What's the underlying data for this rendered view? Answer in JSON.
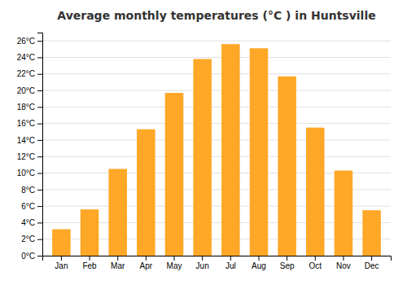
{
  "chart_data": {
    "type": "bar",
    "title": "Average monthly temperatures (°C ) in Huntsville",
    "categories": [
      "Jan",
      "Feb",
      "Mar",
      "Apr",
      "May",
      "Jun",
      "Jul",
      "Aug",
      "Sep",
      "Oct",
      "Nov",
      "Dec"
    ],
    "values": [
      3.2,
      5.6,
      10.5,
      15.3,
      19.7,
      23.8,
      25.6,
      25.1,
      21.7,
      15.5,
      10.3,
      5.5
    ],
    "color": "#FFA726",
    "ylim": [
      0,
      27
    ],
    "yticks": [
      {
        "value": 0,
        "label": "0°C"
      },
      {
        "value": 2,
        "label": "2°C"
      },
      {
        "value": 4,
        "label": "4°C"
      },
      {
        "value": 6,
        "label": "6°C"
      },
      {
        "value": 8,
        "label": "8°C"
      },
      {
        "value": 10,
        "label": "10°C"
      },
      {
        "value": 12,
        "label": "12°C"
      },
      {
        "value": 14,
        "label": "14°C"
      },
      {
        "value": 16,
        "label": "16°C"
      },
      {
        "value": 18,
        "label": "18°C"
      },
      {
        "value": 20,
        "label": "20°C"
      },
      {
        "value": 22,
        "label": "22°C"
      },
      {
        "value": 24,
        "label": "24°C"
      },
      {
        "value": 26,
        "label": "26°C"
      }
    ],
    "grid": true
  }
}
